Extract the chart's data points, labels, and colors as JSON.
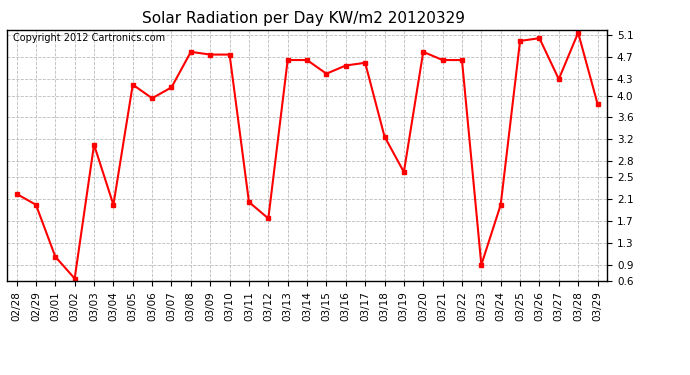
{
  "title": "Solar Radiation per Day KW/m2 20120329",
  "copyright_text": "Copyright 2012 Cartronics.com",
  "dates": [
    "02/28",
    "02/29",
    "03/01",
    "03/02",
    "03/03",
    "03/04",
    "03/05",
    "03/06",
    "03/07",
    "03/08",
    "03/09",
    "03/10",
    "03/11",
    "03/12",
    "03/13",
    "03/14",
    "03/15",
    "03/16",
    "03/17",
    "03/18",
    "03/19",
    "03/20",
    "03/21",
    "03/22",
    "03/23",
    "03/24",
    "03/25",
    "03/26",
    "03/27",
    "03/28",
    "03/29"
  ],
  "values": [
    2.2,
    2.0,
    1.05,
    0.65,
    3.1,
    2.0,
    4.2,
    3.95,
    4.15,
    4.8,
    4.75,
    4.75,
    2.05,
    1.75,
    4.65,
    4.65,
    4.4,
    4.55,
    4.6,
    3.25,
    2.6,
    4.8,
    4.65,
    4.65,
    0.9,
    2.0,
    5.0,
    5.05,
    4.3,
    5.15,
    3.85
  ],
  "line_color": "#ff0000",
  "marker": "s",
  "marker_size": 3,
  "line_width": 1.5,
  "bg_color": "#ffffff",
  "plot_bg_color": "#ffffff",
  "grid_color": "#bbbbbb",
  "ylim": [
    0.6,
    5.2
  ],
  "yticks": [
    0.6,
    0.9,
    1.3,
    1.7,
    2.1,
    2.5,
    2.8,
    3.2,
    3.6,
    4.0,
    4.3,
    4.7,
    5.1
  ],
  "title_fontsize": 11,
  "tick_fontsize": 7.5,
  "copyright_fontsize": 7
}
